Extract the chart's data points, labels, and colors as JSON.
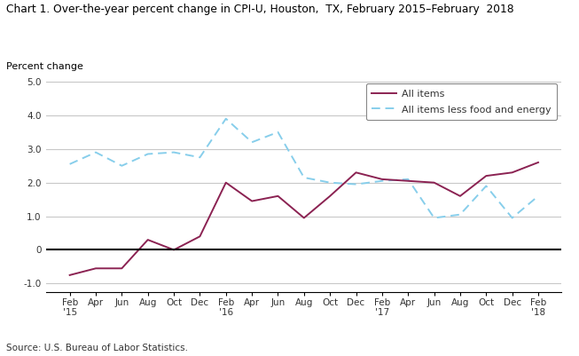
{
  "title": "Chart 1. Over-the-year percent change in CPI-U, Houston,  TX, February 2015–February  2018",
  "ylabel": "Percent change",
  "source": "Source: U.S. Bureau of Labor Statistics.",
  "ylim": [
    -1.25,
    5.0
  ],
  "yticks": [
    -1.0,
    0.0,
    1.0,
    2.0,
    3.0,
    4.0,
    5.0
  ],
  "all_items": {
    "label": "All items",
    "color": "#8B2252",
    "values": [
      -0.75,
      -0.55,
      -0.55,
      0.3,
      0.0,
      0.4,
      2.0,
      1.45,
      1.6,
      0.95,
      1.6,
      2.3,
      2.1,
      2.05,
      2.0,
      1.6,
      2.2,
      2.3,
      2.6
    ]
  },
  "less_food_energy": {
    "label": "All items less food and energy",
    "color": "#87CEEB",
    "values": [
      2.55,
      2.9,
      2.5,
      2.85,
      2.9,
      2.75,
      3.9,
      3.2,
      3.5,
      2.15,
      2.0,
      1.95,
      2.05,
      2.1,
      0.95,
      1.05,
      1.9,
      0.95,
      1.6
    ]
  },
  "title_color": "#000000",
  "ylabel_color": "#000000",
  "background_color": "#ffffff",
  "grid_color": "#c8c8c8",
  "spine_color": "#000000"
}
